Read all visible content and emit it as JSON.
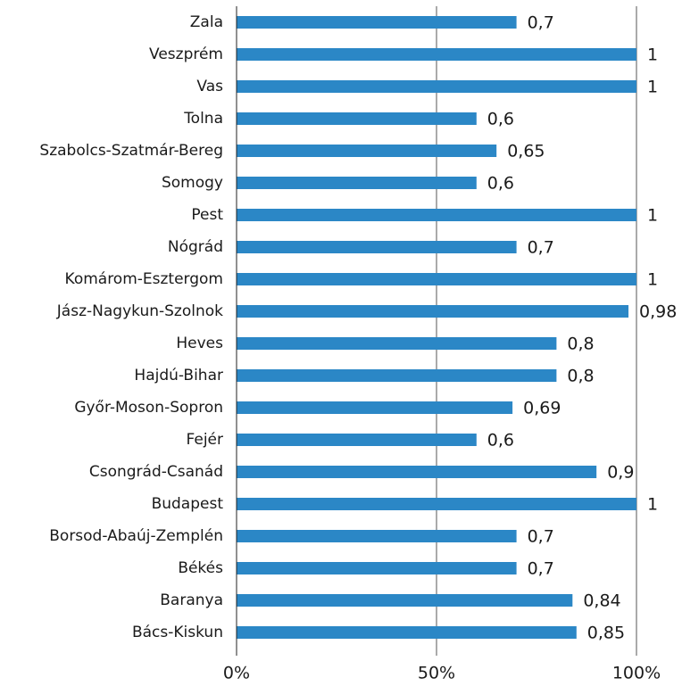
{
  "chart_data": {
    "type": "bar",
    "orientation": "horizontal",
    "categories": [
      "Zala",
      "Veszprém",
      "Vas",
      "Tolna",
      "Szabolcs-Szatmár-Bereg",
      "Somogy",
      "Pest",
      "Nógrád",
      "Komárom-Esztergom",
      "Jász-Nagykun-Szolnok",
      "Heves",
      "Hajdú-Bihar",
      "Győr-Moson-Sopron",
      "Fejér",
      "Csongrád-Csanád",
      "Budapest",
      "Borsod-Abaúj-Zemplén",
      "Békés",
      "Baranya",
      "Bács-Kiskun"
    ],
    "values": [
      70,
      100,
      100,
      60,
      65,
      60,
      100,
      70,
      100,
      98,
      80,
      80,
      69,
      60,
      90,
      100,
      70,
      70,
      84,
      85
    ],
    "value_labels": [
      "0,7",
      "1",
      "1",
      "0,6",
      "0,65",
      "0,6",
      "1",
      "0,7",
      "1",
      "0,98",
      "0,8",
      "0,8",
      "0,69",
      "0,6",
      "0,9",
      "1",
      "0,7",
      "0,7",
      "0,84",
      "0,85"
    ],
    "color": "#2b87c6",
    "xlim": [
      0,
      100
    ],
    "xticks": [
      {
        "value": 0,
        "label": "0%"
      },
      {
        "value": 50,
        "label": "50%"
      },
      {
        "value": 100,
        "label": "100%"
      }
    ],
    "grid": true
  }
}
